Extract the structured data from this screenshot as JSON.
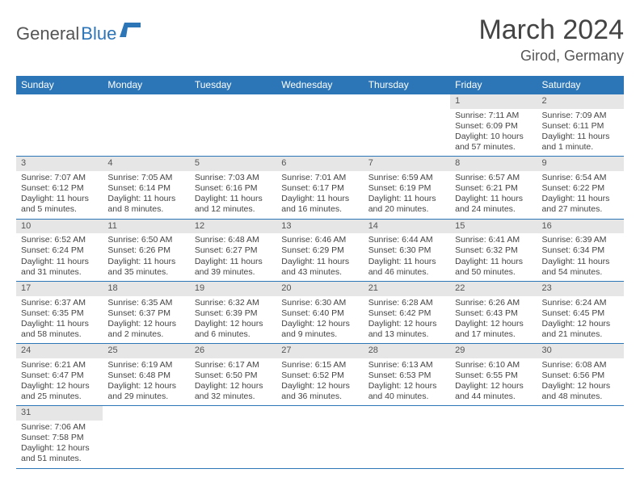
{
  "logo": {
    "text1": "General",
    "text2": "Blue"
  },
  "title": "March 2024",
  "subtitle": "Girod, Germany",
  "colors": {
    "header_bg": "#2c76b8",
    "header_text": "#ffffff",
    "daynum_bg": "#e6e6e6",
    "border": "#2c76b8",
    "page_bg": "#ffffff",
    "text": "#444444"
  },
  "weekdays": [
    "Sunday",
    "Monday",
    "Tuesday",
    "Wednesday",
    "Thursday",
    "Friday",
    "Saturday"
  ],
  "weeks": [
    [
      {
        "n": "",
        "sr": "",
        "ss": "",
        "dl": ""
      },
      {
        "n": "",
        "sr": "",
        "ss": "",
        "dl": ""
      },
      {
        "n": "",
        "sr": "",
        "ss": "",
        "dl": ""
      },
      {
        "n": "",
        "sr": "",
        "ss": "",
        "dl": ""
      },
      {
        "n": "",
        "sr": "",
        "ss": "",
        "dl": ""
      },
      {
        "n": "1",
        "sr": "Sunrise: 7:11 AM",
        "ss": "Sunset: 6:09 PM",
        "dl": "Daylight: 10 hours and 57 minutes."
      },
      {
        "n": "2",
        "sr": "Sunrise: 7:09 AM",
        "ss": "Sunset: 6:11 PM",
        "dl": "Daylight: 11 hours and 1 minute."
      }
    ],
    [
      {
        "n": "3",
        "sr": "Sunrise: 7:07 AM",
        "ss": "Sunset: 6:12 PM",
        "dl": "Daylight: 11 hours and 5 minutes."
      },
      {
        "n": "4",
        "sr": "Sunrise: 7:05 AM",
        "ss": "Sunset: 6:14 PM",
        "dl": "Daylight: 11 hours and 8 minutes."
      },
      {
        "n": "5",
        "sr": "Sunrise: 7:03 AM",
        "ss": "Sunset: 6:16 PM",
        "dl": "Daylight: 11 hours and 12 minutes."
      },
      {
        "n": "6",
        "sr": "Sunrise: 7:01 AM",
        "ss": "Sunset: 6:17 PM",
        "dl": "Daylight: 11 hours and 16 minutes."
      },
      {
        "n": "7",
        "sr": "Sunrise: 6:59 AM",
        "ss": "Sunset: 6:19 PM",
        "dl": "Daylight: 11 hours and 20 minutes."
      },
      {
        "n": "8",
        "sr": "Sunrise: 6:57 AM",
        "ss": "Sunset: 6:21 PM",
        "dl": "Daylight: 11 hours and 24 minutes."
      },
      {
        "n": "9",
        "sr": "Sunrise: 6:54 AM",
        "ss": "Sunset: 6:22 PM",
        "dl": "Daylight: 11 hours and 27 minutes."
      }
    ],
    [
      {
        "n": "10",
        "sr": "Sunrise: 6:52 AM",
        "ss": "Sunset: 6:24 PM",
        "dl": "Daylight: 11 hours and 31 minutes."
      },
      {
        "n": "11",
        "sr": "Sunrise: 6:50 AM",
        "ss": "Sunset: 6:26 PM",
        "dl": "Daylight: 11 hours and 35 minutes."
      },
      {
        "n": "12",
        "sr": "Sunrise: 6:48 AM",
        "ss": "Sunset: 6:27 PM",
        "dl": "Daylight: 11 hours and 39 minutes."
      },
      {
        "n": "13",
        "sr": "Sunrise: 6:46 AM",
        "ss": "Sunset: 6:29 PM",
        "dl": "Daylight: 11 hours and 43 minutes."
      },
      {
        "n": "14",
        "sr": "Sunrise: 6:44 AM",
        "ss": "Sunset: 6:30 PM",
        "dl": "Daylight: 11 hours and 46 minutes."
      },
      {
        "n": "15",
        "sr": "Sunrise: 6:41 AM",
        "ss": "Sunset: 6:32 PM",
        "dl": "Daylight: 11 hours and 50 minutes."
      },
      {
        "n": "16",
        "sr": "Sunrise: 6:39 AM",
        "ss": "Sunset: 6:34 PM",
        "dl": "Daylight: 11 hours and 54 minutes."
      }
    ],
    [
      {
        "n": "17",
        "sr": "Sunrise: 6:37 AM",
        "ss": "Sunset: 6:35 PM",
        "dl": "Daylight: 11 hours and 58 minutes."
      },
      {
        "n": "18",
        "sr": "Sunrise: 6:35 AM",
        "ss": "Sunset: 6:37 PM",
        "dl": "Daylight: 12 hours and 2 minutes."
      },
      {
        "n": "19",
        "sr": "Sunrise: 6:32 AM",
        "ss": "Sunset: 6:39 PM",
        "dl": "Daylight: 12 hours and 6 minutes."
      },
      {
        "n": "20",
        "sr": "Sunrise: 6:30 AM",
        "ss": "Sunset: 6:40 PM",
        "dl": "Daylight: 12 hours and 9 minutes."
      },
      {
        "n": "21",
        "sr": "Sunrise: 6:28 AM",
        "ss": "Sunset: 6:42 PM",
        "dl": "Daylight: 12 hours and 13 minutes."
      },
      {
        "n": "22",
        "sr": "Sunrise: 6:26 AM",
        "ss": "Sunset: 6:43 PM",
        "dl": "Daylight: 12 hours and 17 minutes."
      },
      {
        "n": "23",
        "sr": "Sunrise: 6:24 AM",
        "ss": "Sunset: 6:45 PM",
        "dl": "Daylight: 12 hours and 21 minutes."
      }
    ],
    [
      {
        "n": "24",
        "sr": "Sunrise: 6:21 AM",
        "ss": "Sunset: 6:47 PM",
        "dl": "Daylight: 12 hours and 25 minutes."
      },
      {
        "n": "25",
        "sr": "Sunrise: 6:19 AM",
        "ss": "Sunset: 6:48 PM",
        "dl": "Daylight: 12 hours and 29 minutes."
      },
      {
        "n": "26",
        "sr": "Sunrise: 6:17 AM",
        "ss": "Sunset: 6:50 PM",
        "dl": "Daylight: 12 hours and 32 minutes."
      },
      {
        "n": "27",
        "sr": "Sunrise: 6:15 AM",
        "ss": "Sunset: 6:52 PM",
        "dl": "Daylight: 12 hours and 36 minutes."
      },
      {
        "n": "28",
        "sr": "Sunrise: 6:13 AM",
        "ss": "Sunset: 6:53 PM",
        "dl": "Daylight: 12 hours and 40 minutes."
      },
      {
        "n": "29",
        "sr": "Sunrise: 6:10 AM",
        "ss": "Sunset: 6:55 PM",
        "dl": "Daylight: 12 hours and 44 minutes."
      },
      {
        "n": "30",
        "sr": "Sunrise: 6:08 AM",
        "ss": "Sunset: 6:56 PM",
        "dl": "Daylight: 12 hours and 48 minutes."
      }
    ],
    [
      {
        "n": "31",
        "sr": "Sunrise: 7:06 AM",
        "ss": "Sunset: 7:58 PM",
        "dl": "Daylight: 12 hours and 51 minutes."
      },
      {
        "n": "",
        "sr": "",
        "ss": "",
        "dl": ""
      },
      {
        "n": "",
        "sr": "",
        "ss": "",
        "dl": ""
      },
      {
        "n": "",
        "sr": "",
        "ss": "",
        "dl": ""
      },
      {
        "n": "",
        "sr": "",
        "ss": "",
        "dl": ""
      },
      {
        "n": "",
        "sr": "",
        "ss": "",
        "dl": ""
      },
      {
        "n": "",
        "sr": "",
        "ss": "",
        "dl": ""
      }
    ]
  ]
}
